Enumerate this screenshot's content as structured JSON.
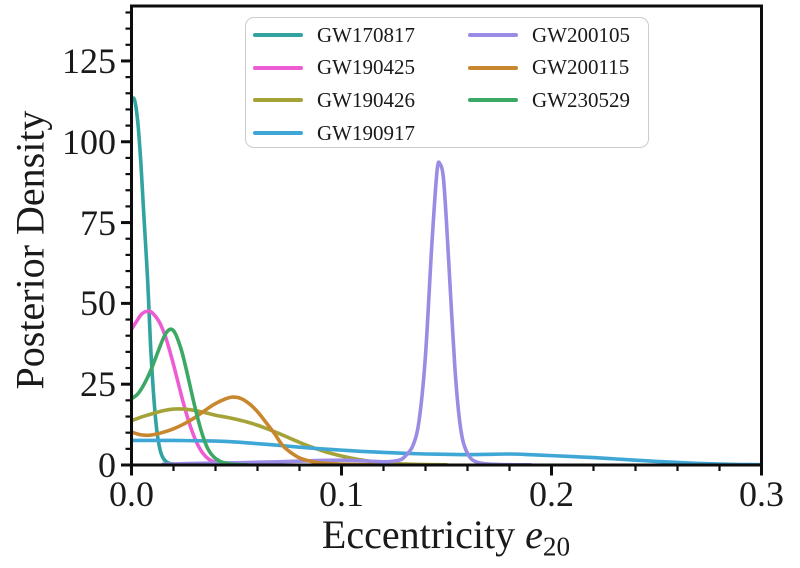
{
  "figure": {
    "background": "#ffffff",
    "frame_color": "#0d0d0d",
    "text_color": "#1a1a1a",
    "legend_border_color": "#cccccc"
  },
  "chart_data": {
    "type": "line",
    "title": "",
    "xlabel": "Eccentricity e_20",
    "xlabel_parts": {
      "text": "Eccentricity ",
      "symbol": "e",
      "subscript": "20"
    },
    "ylabel": "Posterior Density",
    "xlim": [
      0,
      0.3
    ],
    "ylim": [
      0,
      142
    ],
    "grid": false,
    "legend_position": "upper center, 2 columns",
    "x_major_ticks": [
      0,
      0.1,
      0.2,
      0.3
    ],
    "x_tick_labels": [
      "0.0",
      "0.1",
      "0.2",
      "0.3"
    ],
    "x_minor_step": 0.02,
    "y_major_ticks": [
      0,
      25,
      50,
      75,
      100,
      125
    ],
    "y_tick_labels": [
      "0",
      "25",
      "50",
      "75",
      "100",
      "125"
    ],
    "y_minor_step": 5,
    "series": [
      {
        "name": "GW170817",
        "color": "#31a3a0",
        "peak": {
          "x": 0.0,
          "y": 113.5
        },
        "points": [
          [
            0,
            113.5
          ],
          [
            0.0015,
            112.8
          ],
          [
            0.003,
            106
          ],
          [
            0.0045,
            93
          ],
          [
            0.006,
            76
          ],
          [
            0.0077,
            57
          ],
          [
            0.009,
            38
          ],
          [
            0.0105,
            22
          ],
          [
            0.012,
            11
          ],
          [
            0.0135,
            5
          ],
          [
            0.015,
            2.2
          ],
          [
            0.017,
            0.8
          ],
          [
            0.02,
            0.25
          ],
          [
            0.025,
            0.08
          ],
          [
            0.03,
            0.03
          ],
          [
            0.035,
            0
          ]
        ]
      },
      {
        "name": "GW190425",
        "color": "#ee5cd3",
        "peak": {
          "x": 0.008,
          "y": 47.6
        },
        "points": [
          [
            0,
            42
          ],
          [
            0.003,
            45
          ],
          [
            0.005,
            46.8
          ],
          [
            0.008,
            47.6
          ],
          [
            0.01,
            47
          ],
          [
            0.013,
            44.5
          ],
          [
            0.016,
            40
          ],
          [
            0.019,
            33.5
          ],
          [
            0.022,
            26
          ],
          [
            0.025,
            18.5
          ],
          [
            0.028,
            12
          ],
          [
            0.031,
            7
          ],
          [
            0.034,
            3.6
          ],
          [
            0.037,
            1.7
          ],
          [
            0.04,
            0.8
          ],
          [
            0.045,
            0.25
          ],
          [
            0.05,
            0.05
          ]
        ]
      },
      {
        "name": "GW190426",
        "color": "#a5a338",
        "peak": {
          "x": 0.022,
          "y": 17.3
        },
        "points": [
          [
            0,
            13.7
          ],
          [
            0.005,
            14.9
          ],
          [
            0.01,
            15.9
          ],
          [
            0.015,
            16.8
          ],
          [
            0.02,
            17.3
          ],
          [
            0.025,
            17.3
          ],
          [
            0.03,
            16.9
          ],
          [
            0.035,
            16.2
          ],
          [
            0.04,
            15.4
          ],
          [
            0.045,
            14.8
          ],
          [
            0.05,
            14.1
          ],
          [
            0.055,
            13.3
          ],
          [
            0.06,
            12.3
          ],
          [
            0.065,
            11.1
          ],
          [
            0.07,
            9.8
          ],
          [
            0.075,
            8.4
          ],
          [
            0.08,
            7
          ],
          [
            0.085,
            5.7
          ],
          [
            0.09,
            4.6
          ],
          [
            0.095,
            3.6
          ],
          [
            0.1,
            2.8
          ],
          [
            0.105,
            2.1
          ],
          [
            0.11,
            1.5
          ],
          [
            0.115,
            1
          ],
          [
            0.12,
            0.7
          ],
          [
            0.125,
            0.45
          ],
          [
            0.13,
            0.3
          ],
          [
            0.14,
            0.12
          ],
          [
            0.15,
            0.05
          ]
        ]
      },
      {
        "name": "GW190917",
        "color": "#3fa7d6",
        "peak": {
          "x": 0.0,
          "y": 7.6
        },
        "points": [
          [
            0,
            7.6
          ],
          [
            0.01,
            7.6
          ],
          [
            0.02,
            7.6
          ],
          [
            0.03,
            7.5
          ],
          [
            0.04,
            7.4
          ],
          [
            0.05,
            7.1
          ],
          [
            0.06,
            6.6
          ],
          [
            0.07,
            6.1
          ],
          [
            0.08,
            5.5
          ],
          [
            0.09,
            5
          ],
          [
            0.1,
            4.6
          ],
          [
            0.11,
            4.2
          ],
          [
            0.12,
            3.9
          ],
          [
            0.13,
            3.6
          ],
          [
            0.14,
            3.4
          ],
          [
            0.15,
            3.3
          ],
          [
            0.16,
            3.2
          ],
          [
            0.17,
            3.3
          ],
          [
            0.18,
            3.4
          ],
          [
            0.19,
            3.2
          ],
          [
            0.2,
            2.9
          ],
          [
            0.21,
            2.6
          ],
          [
            0.22,
            2.3
          ],
          [
            0.23,
            1.9
          ],
          [
            0.24,
            1.5
          ],
          [
            0.25,
            1.1
          ],
          [
            0.26,
            0.8
          ],
          [
            0.27,
            0.5
          ],
          [
            0.28,
            0.3
          ],
          [
            0.29,
            0.15
          ],
          [
            0.3,
            0.1
          ]
        ]
      },
      {
        "name": "GW200105",
        "color": "#9a8be4",
        "peak": {
          "x": 0.146,
          "y": 93
        },
        "points": [
          [
            0.015,
            0.2
          ],
          [
            0.03,
            0.5
          ],
          [
            0.05,
            0.7
          ],
          [
            0.07,
            1
          ],
          [
            0.09,
            1.4
          ],
          [
            0.1,
            1.5
          ],
          [
            0.11,
            1.3
          ],
          [
            0.12,
            1
          ],
          [
            0.125,
            1.2
          ],
          [
            0.128,
            1.6
          ],
          [
            0.13,
            2.5
          ],
          [
            0.134,
            6
          ],
          [
            0.137,
            14
          ],
          [
            0.14,
            34
          ],
          [
            0.143,
            68
          ],
          [
            0.1455,
            91
          ],
          [
            0.147,
            93
          ],
          [
            0.1485,
            89
          ],
          [
            0.15,
            75
          ],
          [
            0.152,
            52
          ],
          [
            0.154,
            30
          ],
          [
            0.156,
            15
          ],
          [
            0.158,
            7
          ],
          [
            0.161,
            2.5
          ],
          [
            0.164,
            1
          ],
          [
            0.168,
            0.4
          ],
          [
            0.175,
            0.15
          ],
          [
            0.19,
            0.05
          ]
        ]
      },
      {
        "name": "GW200115",
        "color": "#c8872f",
        "peak": {
          "x": 0.048,
          "y": 21
        },
        "points": [
          [
            0,
            10.2
          ],
          [
            0.004,
            9.4
          ],
          [
            0.008,
            9.2
          ],
          [
            0.012,
            9.6
          ],
          [
            0.016,
            10.3
          ],
          [
            0.02,
            11.2
          ],
          [
            0.025,
            12.7
          ],
          [
            0.03,
            14.6
          ],
          [
            0.035,
            16.9
          ],
          [
            0.04,
            19
          ],
          [
            0.045,
            20.5
          ],
          [
            0.048,
            21
          ],
          [
            0.052,
            20.6
          ],
          [
            0.056,
            19
          ],
          [
            0.06,
            16.5
          ],
          [
            0.064,
            13.2
          ],
          [
            0.068,
            9.8
          ],
          [
            0.072,
            6
          ],
          [
            0.076,
            3.8
          ],
          [
            0.08,
            2.2
          ],
          [
            0.085,
            1.2
          ],
          [
            0.09,
            0.65
          ],
          [
            0.095,
            0.4
          ],
          [
            0.1,
            0.25
          ],
          [
            0.11,
            0.1
          ],
          [
            0.115,
            0.05
          ]
        ]
      },
      {
        "name": "GW230529",
        "color": "#3ca865",
        "peak": {
          "x": 0.019,
          "y": 42
        },
        "points": [
          [
            0,
            20.5
          ],
          [
            0.003,
            22
          ],
          [
            0.006,
            25
          ],
          [
            0.009,
            29
          ],
          [
            0.012,
            34
          ],
          [
            0.015,
            39
          ],
          [
            0.017,
            41.3
          ],
          [
            0.019,
            42
          ],
          [
            0.021,
            40.5
          ],
          [
            0.024,
            35
          ],
          [
            0.027,
            27
          ],
          [
            0.03,
            18.5
          ],
          [
            0.033,
            11
          ],
          [
            0.036,
            5.5
          ],
          [
            0.039,
            2.6
          ],
          [
            0.042,
            1.2
          ],
          [
            0.046,
            0.4
          ],
          [
            0.05,
            0.15
          ],
          [
            0.055,
            0.05
          ]
        ]
      }
    ]
  },
  "legend": {
    "ncol": 2,
    "rows_per_col": 4
  }
}
